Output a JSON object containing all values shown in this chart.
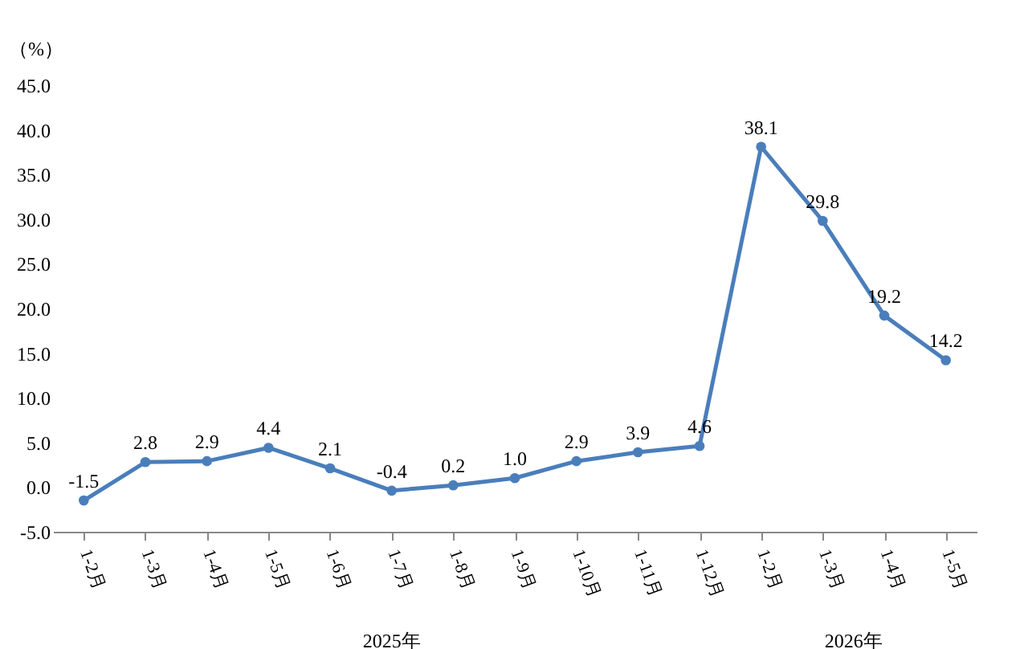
{
  "chart_data": {
    "type": "line",
    "ylabel": "（%）",
    "categories": [
      "1-2月",
      "1-3月",
      "1-4月",
      "1-5月",
      "1-6月",
      "1-7月",
      "1-8月",
      "1-9月",
      "1-10月",
      "1-11月",
      "1-12月",
      "1-2月",
      "1-3月",
      "1-4月",
      "1-5月"
    ],
    "series": [
      {
        "color": "#4a7ebb",
        "values": [
          -1.5,
          2.8,
          2.9,
          4.4,
          2.1,
          -0.4,
          0.2,
          1.0,
          2.9,
          3.9,
          4.6,
          38.1,
          29.8,
          19.2,
          14.2
        ]
      }
    ],
    "value_labels": [
      "-1.5",
      "2.8",
      "2.9",
      "4.4",
      "2.1",
      "-0.4",
      "0.2",
      "1.0",
      "2.9",
      "3.9",
      "4.6",
      "38.1",
      "29.8",
      "19.2",
      "14.2"
    ],
    "ylim": [
      -5,
      45
    ],
    "yticks": [
      {
        "value": -5,
        "label": "-5.0"
      },
      {
        "value": 0,
        "label": "0.0"
      },
      {
        "value": 5,
        "label": "5.0"
      },
      {
        "value": 10,
        "label": "10.0"
      },
      {
        "value": 15,
        "label": "15.0"
      },
      {
        "value": 20,
        "label": "20.0"
      },
      {
        "value": 25,
        "label": "25.0"
      },
      {
        "value": 30,
        "label": "30.0"
      },
      {
        "value": 35,
        "label": "35.0"
      },
      {
        "value": 40,
        "label": "40.0"
      },
      {
        "value": 45,
        "label": "45.0"
      }
    ],
    "annotations": [
      "2025年",
      "2026年"
    ],
    "marker": "circle",
    "line_style": "solid",
    "grid": false,
    "legend": false
  }
}
